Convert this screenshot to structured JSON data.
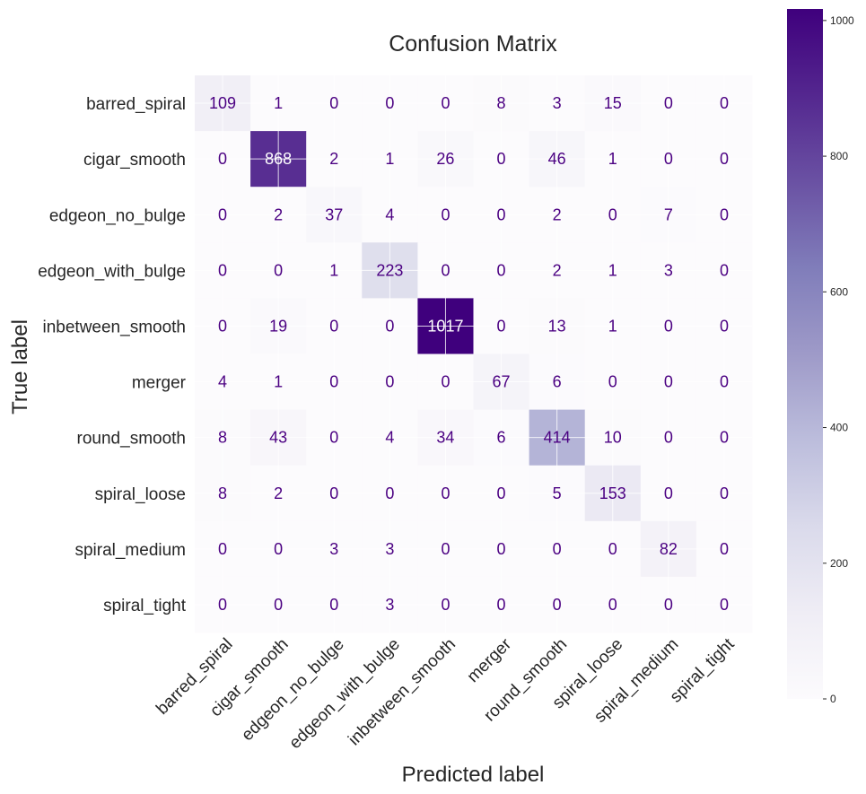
{
  "chart_data": {
    "type": "heatmap",
    "title": "Confusion Matrix",
    "xlabel": "Predicted label",
    "ylabel": "True label",
    "x_categories": [
      "barred_spiral",
      "cigar_smooth",
      "edgeon_no_bulge",
      "edgeon_with_bulge",
      "inbetween_smooth",
      "merger",
      "round_smooth",
      "spiral_loose",
      "spiral_medium",
      "spiral_tight"
    ],
    "y_categories": [
      "barred_spiral",
      "cigar_smooth",
      "edgeon_no_bulge",
      "edgeon_with_bulge",
      "inbetween_smooth",
      "merger",
      "round_smooth",
      "spiral_loose",
      "spiral_medium",
      "spiral_tight"
    ],
    "values": [
      [
        109,
        1,
        0,
        0,
        0,
        8,
        3,
        15,
        0,
        0
      ],
      [
        0,
        868,
        2,
        1,
        26,
        0,
        46,
        1,
        0,
        0
      ],
      [
        0,
        2,
        37,
        4,
        0,
        0,
        2,
        0,
        7,
        0
      ],
      [
        0,
        0,
        1,
        223,
        0,
        0,
        2,
        1,
        3,
        0
      ],
      [
        0,
        19,
        0,
        0,
        1017,
        0,
        13,
        1,
        0,
        0
      ],
      [
        4,
        1,
        0,
        0,
        0,
        67,
        6,
        0,
        0,
        0
      ],
      [
        8,
        43,
        0,
        4,
        34,
        6,
        414,
        10,
        0,
        0
      ],
      [
        8,
        2,
        0,
        0,
        0,
        0,
        5,
        153,
        0,
        0
      ],
      [
        0,
        0,
        3,
        3,
        0,
        0,
        0,
        0,
        82,
        0
      ],
      [
        0,
        0,
        0,
        3,
        0,
        0,
        0,
        0,
        0,
        0
      ]
    ],
    "colormap": "Purples",
    "color_low": "#fcfbfd",
    "color_high": "#3f007d",
    "colorbar": {
      "min": 0,
      "max": 1017,
      "ticks": [
        0,
        200,
        400,
        600,
        800,
        1000
      ]
    },
    "grid": true
  }
}
